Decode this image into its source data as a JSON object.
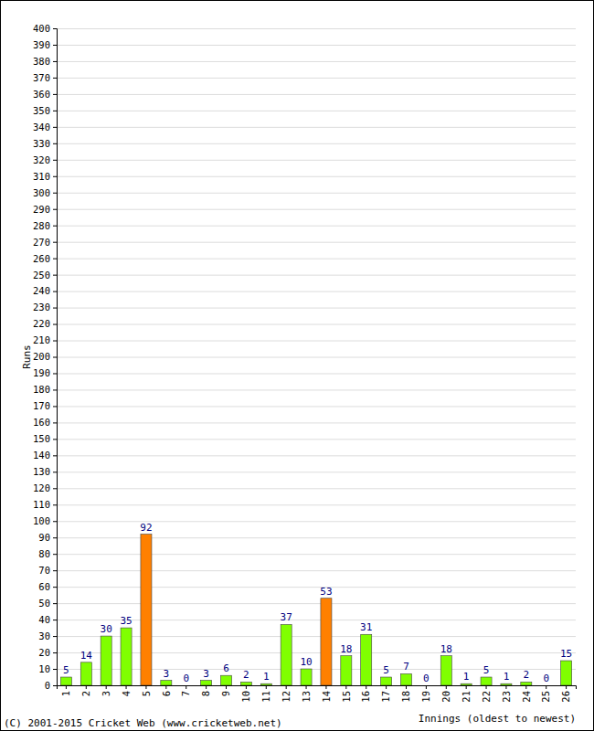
{
  "chart_data": {
    "type": "bar",
    "categories": [
      "1",
      "2",
      "3",
      "4",
      "5",
      "6",
      "7",
      "8",
      "9",
      "10",
      "11",
      "12",
      "13",
      "14",
      "15",
      "16",
      "17",
      "18",
      "19",
      "20",
      "21",
      "22",
      "23",
      "24",
      "25",
      "26"
    ],
    "values": [
      5,
      14,
      30,
      35,
      92,
      3,
      0,
      3,
      6,
      2,
      1,
      37,
      10,
      53,
      18,
      31,
      5,
      7,
      0,
      18,
      1,
      5,
      1,
      2,
      0,
      15
    ],
    "colors": [
      "#80ff00",
      "#80ff00",
      "#80ff00",
      "#80ff00",
      "#ff8000",
      "#80ff00",
      "#80ff00",
      "#80ff00",
      "#80ff00",
      "#80ff00",
      "#80ff00",
      "#80ff00",
      "#80ff00",
      "#ff8000",
      "#80ff00",
      "#80ff00",
      "#80ff00",
      "#80ff00",
      "#80ff00",
      "#80ff00",
      "#80ff00",
      "#80ff00",
      "#80ff00",
      "#80ff00",
      "#80ff00",
      "#80ff00"
    ],
    "x_label": "Innings (oldest to newest)",
    "y_label": "Runs",
    "annotations": [
      "(C) 2001-2015 Cricket Web (www.cricketweb.net)"
    ],
    "ylim": [
      0,
      400
    ],
    "yticks": [
      0,
      10,
      20,
      30,
      40,
      50,
      60,
      70,
      80,
      90,
      100,
      110,
      120,
      130,
      140,
      150,
      160,
      170,
      180,
      190,
      200,
      210,
      220,
      230,
      240,
      250,
      260,
      270,
      280,
      290,
      300,
      310,
      320,
      330,
      340,
      350,
      360,
      370,
      380,
      390,
      400
    ],
    "grid": true,
    "data_labels": true
  }
}
